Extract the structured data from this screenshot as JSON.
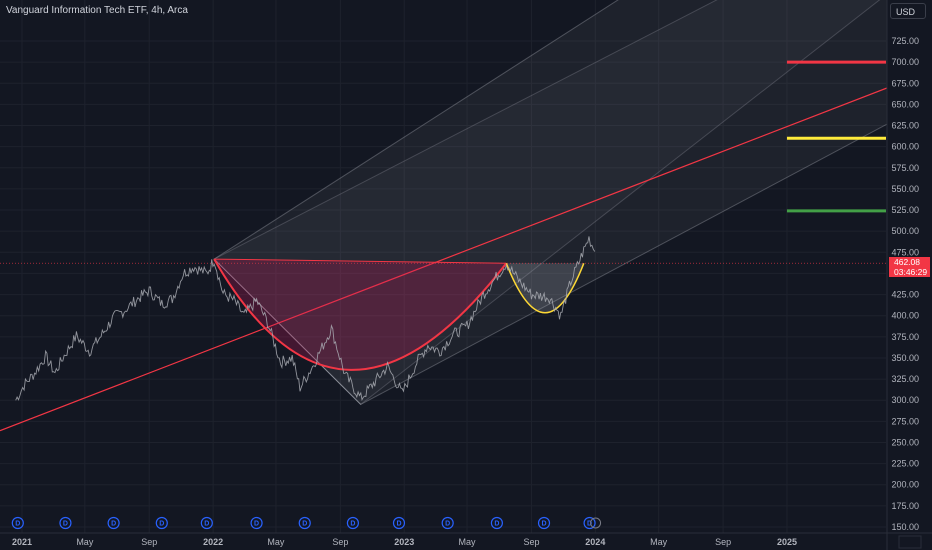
{
  "header": {
    "symbol_title": "Vanguard Information Tech ETF, 4h, Arca",
    "currency": "USD"
  },
  "price_tag": {
    "price": "462.08",
    "countdown": "03:46:29"
  },
  "colors": {
    "background": "#131722",
    "candle_line": "#a9acb3",
    "trendline": "#f23645",
    "cup_fill": "#c2185b",
    "handle_stroke": "#fdd835",
    "level_red": "#f23645",
    "level_yellow": "#ffeb3b",
    "level_green": "#43a047",
    "dividend_marker": "#2962ff"
  },
  "chart_data": {
    "type": "line",
    "title": "Vanguard Information Tech ETF, 4h, Arca",
    "xlabel": "",
    "ylabel": "",
    "x_ticks": [
      "2021",
      "May",
      "Sep",
      "2022",
      "May",
      "Sep",
      "2023",
      "May",
      "Sep",
      "2024",
      "May",
      "Sep",
      "2025"
    ],
    "y_ticks": [
      150,
      175,
      200,
      225,
      250,
      275,
      300,
      325,
      350,
      375,
      400,
      425,
      450,
      475,
      500,
      525,
      550,
      575,
      600,
      625,
      650,
      675,
      700,
      725
    ],
    "ylim": [
      142,
      760
    ],
    "xlim": [
      "2020-11-20",
      "2025-10-05"
    ],
    "grid": true,
    "series": [
      {
        "values": [
          [
            "2020-12-20",
            300
          ],
          [
            "2021-01-05",
            318
          ],
          [
            "2021-01-25",
            332
          ],
          [
            "2021-02-15",
            352
          ],
          [
            "2021-03-05",
            332
          ],
          [
            "2021-03-20",
            350
          ],
          [
            "2021-04-15",
            376
          ],
          [
            "2021-05-10",
            358
          ],
          [
            "2021-06-01",
            376
          ],
          [
            "2021-06-25",
            398
          ],
          [
            "2021-07-15",
            406
          ],
          [
            "2021-08-10",
            420
          ],
          [
            "2021-09-01",
            430
          ],
          [
            "2021-09-25",
            414
          ],
          [
            "2021-10-15",
            420
          ],
          [
            "2021-11-05",
            450
          ],
          [
            "2021-11-25",
            458
          ],
          [
            "2021-12-20",
            450
          ],
          [
            "2022-01-03",
            467
          ],
          [
            "2022-01-20",
            426
          ],
          [
            "2022-02-10",
            418
          ],
          [
            "2022-03-01",
            400
          ],
          [
            "2022-03-25",
            418
          ],
          [
            "2022-04-15",
            392
          ],
          [
            "2022-05-10",
            345
          ],
          [
            "2022-06-01",
            350
          ],
          [
            "2022-06-16",
            315
          ],
          [
            "2022-07-10",
            340
          ],
          [
            "2022-08-15",
            385
          ],
          [
            "2022-09-10",
            330
          ],
          [
            "2022-10-10",
            302
          ],
          [
            "2022-11-01",
            318
          ],
          [
            "2022-11-30",
            340
          ],
          [
            "2022-12-28",
            308
          ],
          [
            "2023-01-25",
            345
          ],
          [
            "2023-02-15",
            365
          ],
          [
            "2023-03-10",
            358
          ],
          [
            "2023-04-05",
            378
          ],
          [
            "2023-05-01",
            388
          ],
          [
            "2023-06-01",
            425
          ],
          [
            "2023-07-15",
            462
          ],
          [
            "2023-08-10",
            440
          ],
          [
            "2023-09-01",
            425
          ],
          [
            "2023-10-05",
            422
          ],
          [
            "2023-10-27",
            400
          ],
          [
            "2023-11-15",
            440
          ],
          [
            "2023-12-05",
            470
          ],
          [
            "2023-12-20",
            492
          ],
          [
            "2023-12-31",
            476
          ]
        ]
      }
    ],
    "horizontal_levels": [
      700,
      610,
      524
    ],
    "last_price_line": 462.08,
    "dividend_marker_count": 13
  }
}
